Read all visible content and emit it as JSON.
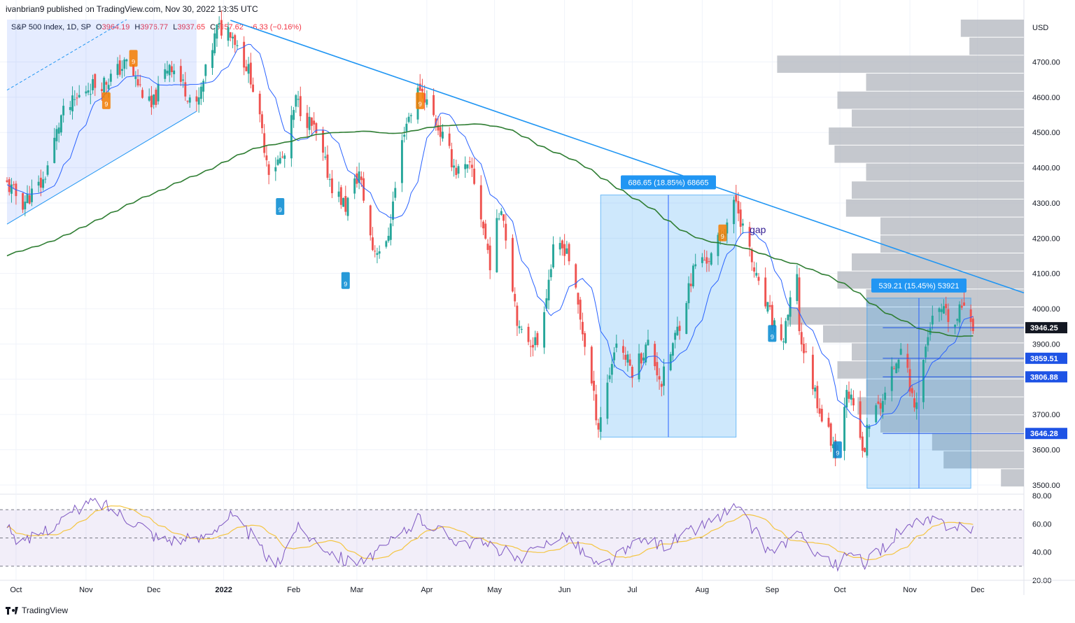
{
  "header": {
    "publisher": "ivanbrian9 published on TradingView.com, Nov 30, 2022 13:35 UTC"
  },
  "legend": {
    "symbol": "S&P 500 Index, 1D, SP",
    "o_label": "O",
    "o": "3964.19",
    "h_label": "H",
    "h": "3976.77",
    "l_label": "L",
    "l": "3937.65",
    "c_label": "C",
    "c": "3957.62",
    "change": "−6.33 (−0.16%)"
  },
  "footer": {
    "brand": "TradingView"
  },
  "colors": {
    "up": "#26a69a",
    "down": "#ef5350",
    "ma_fast": "#2962ff",
    "ma_slow": "#2e7d32",
    "trendline": "#2196f3",
    "rsi": "#7e57c2",
    "rsi_ma": "#f4c542",
    "volume_profile": "#b2b5be"
  },
  "chart_data": [
    {
      "type": "candlestick",
      "title": "S&P 500 Index, 1D, SP",
      "currency": "USD",
      "ylim": [
        3480,
        4820
      ],
      "yticks": [
        3500,
        3600,
        3700,
        3800,
        3900,
        4000,
        4100,
        4200,
        4300,
        4400,
        4500,
        4600,
        4700
      ],
      "x_tick_labels": [
        "Oct",
        "Nov",
        "Dec",
        "2022",
        "Feb",
        "Mar",
        "Apr",
        "May",
        "Jun",
        "Jul",
        "Aug",
        "Sep",
        "Oct",
        "Nov",
        "Dec"
      ],
      "close_path": [
        [
          "2021-09-27",
          4352
        ],
        [
          "2021-10-04",
          4300
        ],
        [
          "2021-10-13",
          4360
        ],
        [
          "2021-10-21",
          4545
        ],
        [
          "2021-11-02",
          4630
        ],
        [
          "2021-11-10",
          4646
        ],
        [
          "2021-11-19",
          4697
        ],
        [
          "2021-11-30",
          4567
        ],
        [
          "2021-12-08",
          4701
        ],
        [
          "2021-12-20",
          4568
        ],
        [
          "2021-12-29",
          4793
        ],
        [
          "2022-01-04",
          4793
        ],
        [
          "2022-01-13",
          4659
        ],
        [
          "2022-01-21",
          4398
        ],
        [
          "2022-01-28",
          4431
        ],
        [
          "2022-02-02",
          4590
        ],
        [
          "2022-02-10",
          4505
        ],
        [
          "2022-02-18",
          4349
        ],
        [
          "2022-02-24",
          4289
        ],
        [
          "2022-03-02",
          4386
        ],
        [
          "2022-03-08",
          4171
        ],
        [
          "2022-03-14",
          4173
        ],
        [
          "2022-03-22",
          4511
        ],
        [
          "2022-03-29",
          4631
        ],
        [
          "2022-04-07",
          4500
        ],
        [
          "2022-04-14",
          4392
        ],
        [
          "2022-04-21",
          4394
        ],
        [
          "2022-04-29",
          4132
        ],
        [
          "2022-05-04",
          4300
        ],
        [
          "2022-05-12",
          3930
        ],
        [
          "2022-05-20",
          3901
        ],
        [
          "2022-05-27",
          4158
        ],
        [
          "2022-06-02",
          4176
        ],
        [
          "2022-06-10",
          3901
        ],
        [
          "2022-06-16",
          3667
        ],
        [
          "2022-06-24",
          3911
        ],
        [
          "2022-07-01",
          3825
        ],
        [
          "2022-07-08",
          3899
        ],
        [
          "2022-07-14",
          3790
        ],
        [
          "2022-07-22",
          3962
        ],
        [
          "2022-07-29",
          4130
        ],
        [
          "2022-08-05",
          4145
        ],
        [
          "2022-08-16",
          4305
        ],
        [
          "2022-08-26",
          4058
        ],
        [
          "2022-09-01",
          3966
        ],
        [
          "2022-09-06",
          3908
        ],
        [
          "2022-09-12",
          4110
        ],
        [
          "2022-09-13",
          3932
        ],
        [
          "2022-09-23",
          3693
        ],
        [
          "2022-09-30",
          3585
        ],
        [
          "2022-10-04",
          3790
        ],
        [
          "2022-10-12",
          3577
        ],
        [
          "2022-10-13",
          3669
        ],
        [
          "2022-10-21",
          3752
        ],
        [
          "2022-10-28",
          3901
        ],
        [
          "2022-11-03",
          3720
        ],
        [
          "2022-11-10",
          3956
        ],
        [
          "2022-11-15",
          3991
        ],
        [
          "2022-11-21",
          3950
        ],
        [
          "2022-11-25",
          4026
        ],
        [
          "2022-11-29",
          3957
        ]
      ],
      "highlighted_price_labels": [
        "3946.25",
        "3859.51",
        "3806.88",
        "3646.28"
      ],
      "range_measurements": [
        {
          "label": "686.65 (18.85%) 68665",
          "value": 686.65,
          "percent": 18.85,
          "from": "2022-06-17",
          "to": "2022-08-16"
        },
        {
          "label": "539.21 (15.45%) 53921",
          "value": 539.21,
          "percent": 15.45,
          "from": "2022-10-13",
          "to": "2022-11-28"
        }
      ],
      "annotations": [
        "gap",
        "9"
      ]
    },
    {
      "type": "line",
      "title": "RSI",
      "ylim": [
        20,
        80
      ],
      "yticks": [
        "20.00",
        "40.00",
        "60.00",
        "80.00"
      ],
      "levels": [
        30,
        50,
        70
      ],
      "points": [
        [
          "2021-10-01",
          42
        ],
        [
          "2021-10-20",
          62
        ],
        [
          "2021-11-05",
          77
        ],
        [
          "2021-11-25",
          60
        ],
        [
          "2021-12-03",
          50
        ],
        [
          "2021-12-20",
          48
        ],
        [
          "2022-01-04",
          66
        ],
        [
          "2022-01-13",
          52
        ],
        [
          "2022-01-24",
          28
        ],
        [
          "2022-02-02",
          58
        ],
        [
          "2022-02-24",
          34
        ],
        [
          "2022-03-08",
          36
        ],
        [
          "2022-03-29",
          64
        ],
        [
          "2022-04-12",
          50
        ],
        [
          "2022-05-04",
          42
        ],
        [
          "2022-05-12",
          33
        ],
        [
          "2022-05-27",
          50
        ],
        [
          "2022-06-02",
          52
        ],
        [
          "2022-06-16",
          29
        ],
        [
          "2022-07-08",
          50
        ],
        [
          "2022-07-14",
          44
        ],
        [
          "2022-08-05",
          62
        ],
        [
          "2022-08-16",
          72
        ],
        [
          "2022-08-31",
          40
        ],
        [
          "2022-09-12",
          52
        ],
        [
          "2022-09-30",
          29
        ],
        [
          "2022-10-04",
          38
        ],
        [
          "2022-10-13",
          32
        ],
        [
          "2022-10-28",
          56
        ],
        [
          "2022-11-10",
          62
        ],
        [
          "2022-11-29",
          57
        ]
      ]
    }
  ]
}
